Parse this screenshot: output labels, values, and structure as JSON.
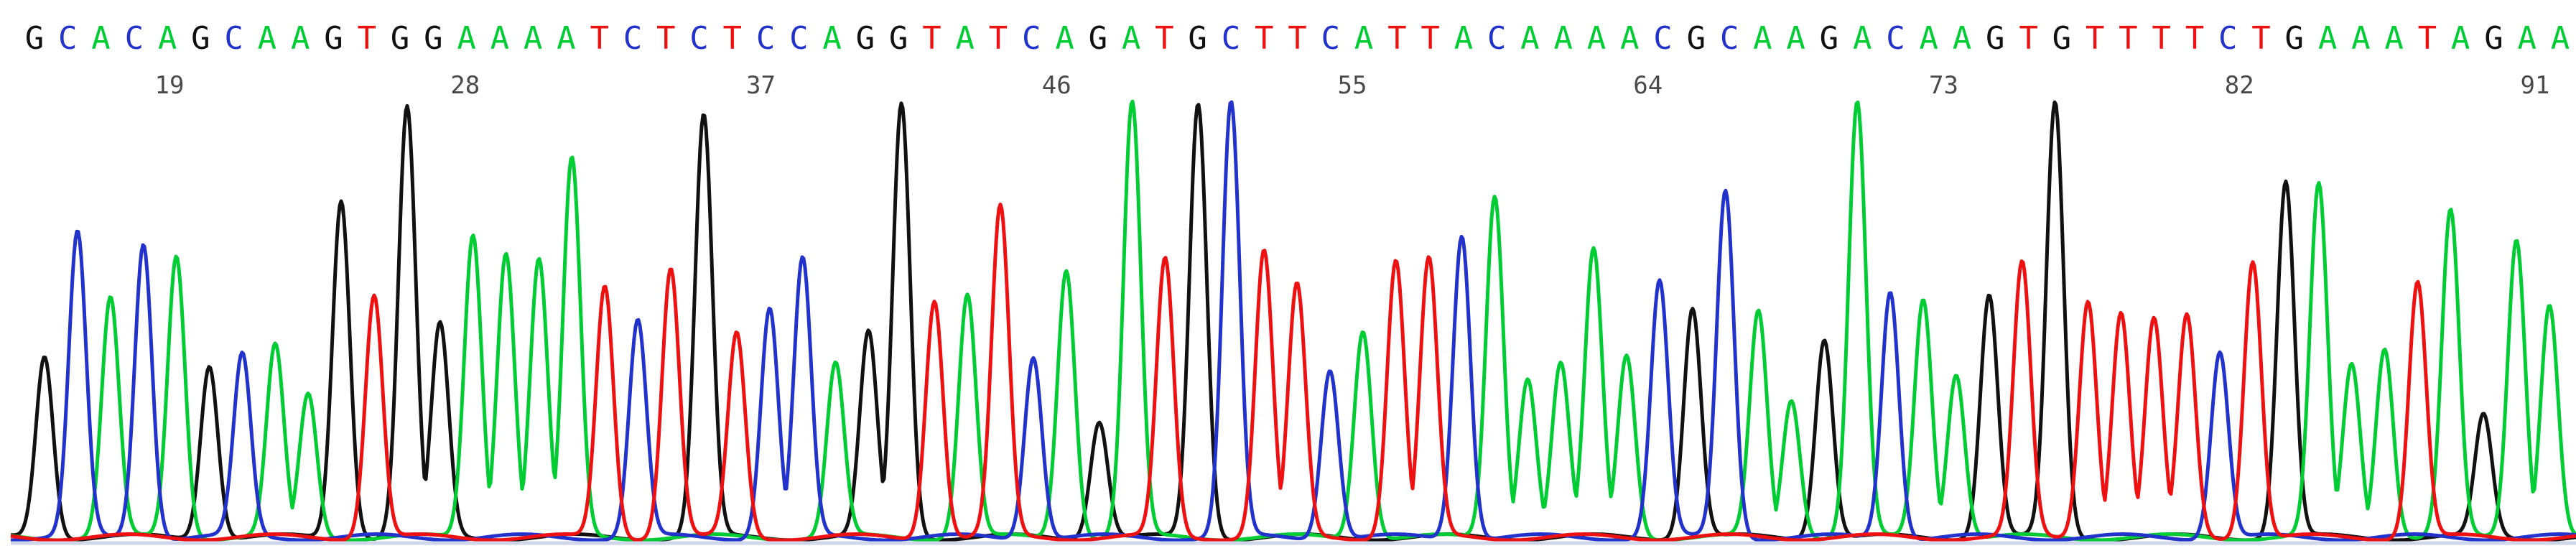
{
  "chart_data": {
    "type": "line",
    "title": "",
    "xlabel": "",
    "ylabel": "",
    "colors": {
      "A": "#00cc33",
      "C": "#2233cc",
      "G": "#111111",
      "T": "#ee1111"
    },
    "base_calls": [
      "G",
      "C",
      "A",
      "C",
      "A",
      "G",
      "C",
      "A",
      "A",
      "G",
      "T",
      "G",
      "G",
      "A",
      "A",
      "A",
      "A",
      "T",
      "C",
      "T",
      "C",
      "T",
      "C",
      "C",
      "A",
      "G",
      "G",
      "T",
      "A",
      "T",
      "C",
      "A",
      "G",
      "A",
      "T",
      "G",
      "C",
      "T",
      "T",
      "C",
      "A",
      "T",
      "T",
      "A",
      "C",
      "A",
      "A",
      "A",
      "A",
      "C",
      "G",
      "C",
      "A",
      "A",
      "G",
      "A",
      "C",
      "A",
      "A",
      "G",
      "T",
      "G",
      "T",
      "T",
      "T",
      "T",
      "C",
      "T",
      "G",
      "A",
      "A",
      "A",
      "T",
      "A",
      "G",
      "A",
      "A"
    ],
    "position_labels": [
      "19",
      "28",
      "37",
      "46",
      "55",
      "64",
      "73",
      "82",
      "91"
    ],
    "peaks": [
      {
        "base": "G",
        "h": 42
      },
      {
        "base": "C",
        "h": 70
      },
      {
        "base": "A",
        "h": 55
      },
      {
        "base": "C",
        "h": 68
      },
      {
        "base": "A",
        "h": 65
      },
      {
        "base": "G",
        "h": 40
      },
      {
        "base": "C",
        "h": 42
      },
      {
        "base": "A",
        "h": 44
      },
      {
        "base": "A",
        "h": 33
      },
      {
        "base": "G",
        "h": 78
      },
      {
        "base": "T",
        "h": 56
      },
      {
        "base": "G",
        "h": 99
      },
      {
        "base": "G",
        "h": 49
      },
      {
        "base": "A",
        "h": 70
      },
      {
        "base": "A",
        "h": 66
      },
      {
        "base": "A",
        "h": 64
      },
      {
        "base": "A",
        "h": 87
      },
      {
        "base": "T",
        "h": 58
      },
      {
        "base": "C",
        "h": 50
      },
      {
        "base": "T",
        "h": 62
      },
      {
        "base": "G",
        "h": 97
      },
      {
        "base": "T",
        "h": 47
      },
      {
        "base": "C",
        "h": 53
      },
      {
        "base": "C",
        "h": 64
      },
      {
        "base": "A",
        "h": 40
      },
      {
        "base": "G",
        "h": 47
      },
      {
        "base": "G",
        "h": 100
      },
      {
        "base": "T",
        "h": 55
      },
      {
        "base": "A",
        "h": 56
      },
      {
        "base": "T",
        "h": 76
      },
      {
        "base": "C",
        "h": 42
      },
      {
        "base": "A",
        "h": 62
      },
      {
        "base": "G",
        "h": 27
      },
      {
        "base": "A",
        "h": 100
      },
      {
        "base": "T",
        "h": 64
      },
      {
        "base": "G",
        "h": 100
      },
      {
        "base": "C",
        "h": 100
      },
      {
        "base": "T",
        "h": 66
      },
      {
        "base": "T",
        "h": 58
      },
      {
        "base": "C",
        "h": 39
      },
      {
        "base": "A",
        "h": 48
      },
      {
        "base": "T",
        "h": 64
      },
      {
        "base": "T",
        "h": 64
      },
      {
        "base": "C",
        "h": 70
      },
      {
        "base": "A",
        "h": 79
      },
      {
        "base": "A",
        "h": 37
      },
      {
        "base": "A",
        "h": 40
      },
      {
        "base": "A",
        "h": 66
      },
      {
        "base": "A",
        "h": 42
      },
      {
        "base": "C",
        "h": 59
      },
      {
        "base": "G",
        "h": 53
      },
      {
        "base": "C",
        "h": 80
      },
      {
        "base": "A",
        "h": 52
      },
      {
        "base": "A",
        "h": 32
      },
      {
        "base": "G",
        "h": 46
      },
      {
        "base": "A",
        "h": 100
      },
      {
        "base": "C",
        "h": 57
      },
      {
        "base": "A",
        "h": 55
      },
      {
        "base": "A",
        "h": 38
      },
      {
        "base": "G",
        "h": 56
      },
      {
        "base": "T",
        "h": 63
      },
      {
        "base": "G",
        "h": 100
      },
      {
        "base": "T",
        "h": 55
      },
      {
        "base": "T",
        "h": 52
      },
      {
        "base": "T",
        "h": 50
      },
      {
        "base": "T",
        "h": 51
      },
      {
        "base": "C",
        "h": 43
      },
      {
        "base": "T",
        "h": 64
      },
      {
        "base": "G",
        "h": 82
      },
      {
        "base": "A",
        "h": 81
      },
      {
        "base": "A",
        "h": 40
      },
      {
        "base": "A",
        "h": 44
      },
      {
        "base": "T",
        "h": 59
      },
      {
        "base": "A",
        "h": 75
      },
      {
        "base": "G",
        "h": 28
      },
      {
        "base": "A",
        "h": 69
      },
      {
        "base": "A",
        "h": 54
      }
    ]
  }
}
